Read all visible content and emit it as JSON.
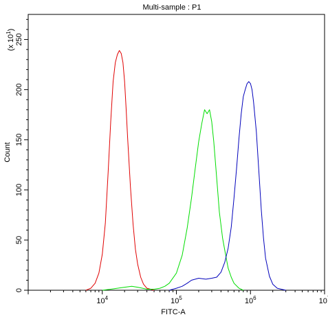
{
  "chart_data": {
    "type": "line",
    "title": "Multi-sample : P1",
    "xlabel": "FITC-A",
    "ylabel": "Count",
    "y_multiplier_label": "(x 10",
    "y_multiplier_exp": "1",
    "y_multiplier_close": ")",
    "x_scale": "log",
    "xlim": [
      1000,
      10000000
    ],
    "ylim": [
      0,
      275
    ],
    "x_ticks": [
      {
        "value": 10000,
        "base": "10",
        "exp": "4"
      },
      {
        "value": 100000,
        "base": "10",
        "exp": "5"
      },
      {
        "value": 1000000,
        "base": "10",
        "exp": "6"
      },
      {
        "value": 10000000,
        "base": "10",
        "exp": "7"
      }
    ],
    "y_ticks": [
      {
        "value": 0,
        "label": "0"
      },
      {
        "value": 50,
        "label": "50"
      },
      {
        "value": 100,
        "label": "100"
      },
      {
        "value": 150,
        "label": "150"
      },
      {
        "value": 200,
        "label": "200"
      },
      {
        "value": 250,
        "label": "250"
      }
    ],
    "grid": false,
    "series": [
      {
        "color": "#e00000",
        "x": [
          6000,
          7000,
          8000,
          9000,
          10000,
          11000,
          12000,
          13000,
          14000,
          15000,
          16000,
          17000,
          18000,
          19000,
          20000,
          21000,
          22000,
          24000,
          26000,
          28000,
          30000,
          33000,
          36000,
          40000,
          45000,
          50000
        ],
        "y": [
          0,
          2,
          7,
          17,
          36,
          67,
          118,
          168,
          208,
          227,
          235,
          239,
          236,
          227,
          208,
          180,
          152,
          103,
          66,
          41,
          26,
          13,
          6,
          2,
          1,
          0
        ]
      },
      {
        "color": "#00dd00",
        "x": [
          10000,
          13000,
          16000,
          20000,
          25000,
          30000,
          35000,
          40000,
          50000,
          60000,
          70000,
          80000,
          100000,
          120000,
          140000,
          160000,
          180000,
          200000,
          220000,
          240000,
          260000,
          280000,
          300000,
          320000,
          350000,
          380000,
          420000,
          460000,
          500000,
          550000,
          600000,
          700000,
          800000
        ],
        "y": [
          0,
          1,
          2,
          3,
          4,
          3,
          2,
          1,
          1,
          2,
          4,
          7,
          17,
          35,
          62,
          92,
          122,
          148,
          166,
          180,
          176,
          180,
          168,
          148,
          112,
          78,
          52,
          36,
          22,
          13,
          7,
          2,
          0
        ]
      },
      {
        "color": "#0000bb",
        "x": [
          80000,
          100000,
          120000,
          140000,
          160000,
          200000,
          250000,
          300000,
          350000,
          400000,
          450000,
          500000,
          550000,
          600000,
          650000,
          700000,
          750000,
          800000,
          850000,
          900000,
          950000,
          1000000,
          1050000,
          1100000,
          1200000,
          1300000,
          1400000,
          1500000,
          1600000,
          1800000,
          2000000,
          2300000,
          2600000,
          3000000
        ],
        "y": [
          0,
          2,
          4,
          7,
          10,
          12,
          11,
          12,
          13,
          18,
          28,
          42,
          63,
          92,
          122,
          152,
          176,
          193,
          200,
          206,
          208,
          206,
          200,
          188,
          158,
          118,
          80,
          52,
          32,
          14,
          6,
          2,
          1,
          0
        ]
      }
    ]
  }
}
